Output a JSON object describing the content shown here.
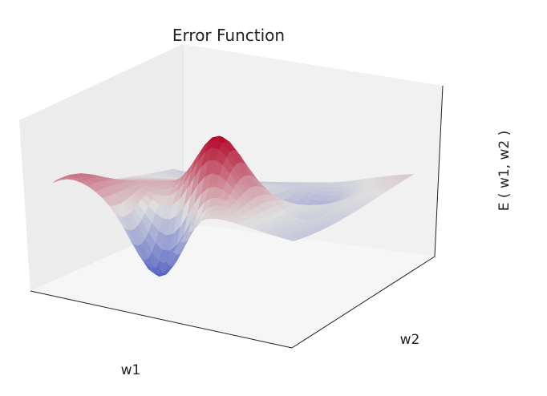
{
  "chart_data": {
    "type": "surface",
    "title": "Error Function",
    "xlabel": "w1",
    "ylabel": "w2",
    "zlabel": "E ( w1, w2 )",
    "colormap": "coolwarm",
    "colormap_colors": [
      "#3b4cc0",
      "#dddddd",
      "#b40426"
    ],
    "ticks_visible": false,
    "grid": false,
    "pane_colors": [
      "#ececec",
      "#f4f4f4",
      "#f7f7f7"
    ],
    "features": {
      "global_min": {
        "label": "deep blue trough near front-left",
        "w1": -2.0,
        "w2": 1.0,
        "E": -1.0
      },
      "global_max": {
        "label": "dark red peak at center",
        "w1": 0.0,
        "w2": 0.0,
        "E": 1.0
      }
    }
  }
}
